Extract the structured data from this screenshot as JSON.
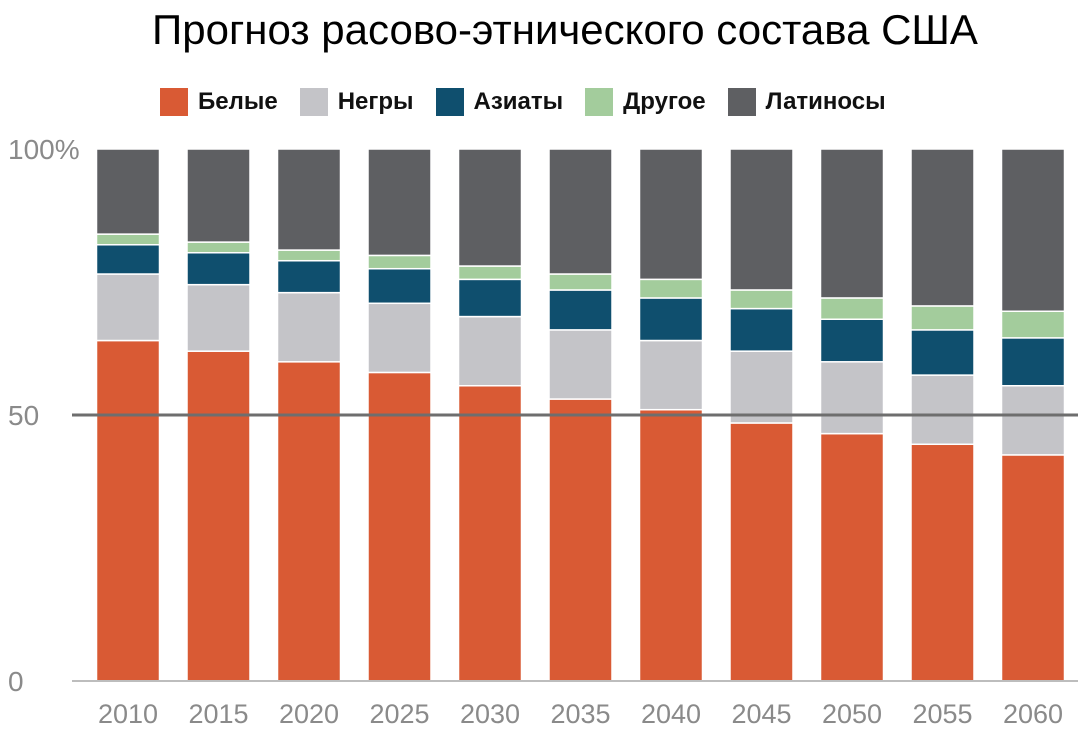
{
  "chart_data": {
    "type": "bar",
    "stacked": true,
    "title": "Прогноз расово-этнического состава США",
    "categories": [
      "2010",
      "2015",
      "2020",
      "2025",
      "2030",
      "2035",
      "2040",
      "2045",
      "2050",
      "2055",
      "2060"
    ],
    "series": [
      {
        "name": "Белые",
        "color": "#D95A34",
        "values": [
          64,
          62,
          60,
          58,
          55.5,
          53,
          51,
          48.5,
          46.5,
          44.5,
          42.5
        ]
      },
      {
        "name": "Негры",
        "color": "#C4C4C8",
        "values": [
          12.5,
          12.5,
          13,
          13,
          13,
          13,
          13,
          13.5,
          13.5,
          13,
          13
        ]
      },
      {
        "name": "Азиаты",
        "color": "#0F4F6E",
        "values": [
          5.5,
          6,
          6,
          6.5,
          7,
          7.5,
          8,
          8,
          8,
          8.5,
          9
        ]
      },
      {
        "name": "Другое",
        "color": "#A3CC9C",
        "values": [
          2,
          2,
          2,
          2.5,
          2.5,
          3,
          3.5,
          3.5,
          4,
          4.5,
          5
        ]
      },
      {
        "name": "Латиносы",
        "color": "#5E5F62",
        "values": [
          16,
          17.5,
          19,
          20,
          22,
          23.5,
          24.5,
          26.5,
          28,
          29.5,
          30.5
        ]
      }
    ],
    "y_ticks": [
      "0",
      "50",
      "100%"
    ],
    "ylim": [
      0,
      100
    ],
    "reference_line": 50,
    "legend_position": "top",
    "grid": false
  }
}
